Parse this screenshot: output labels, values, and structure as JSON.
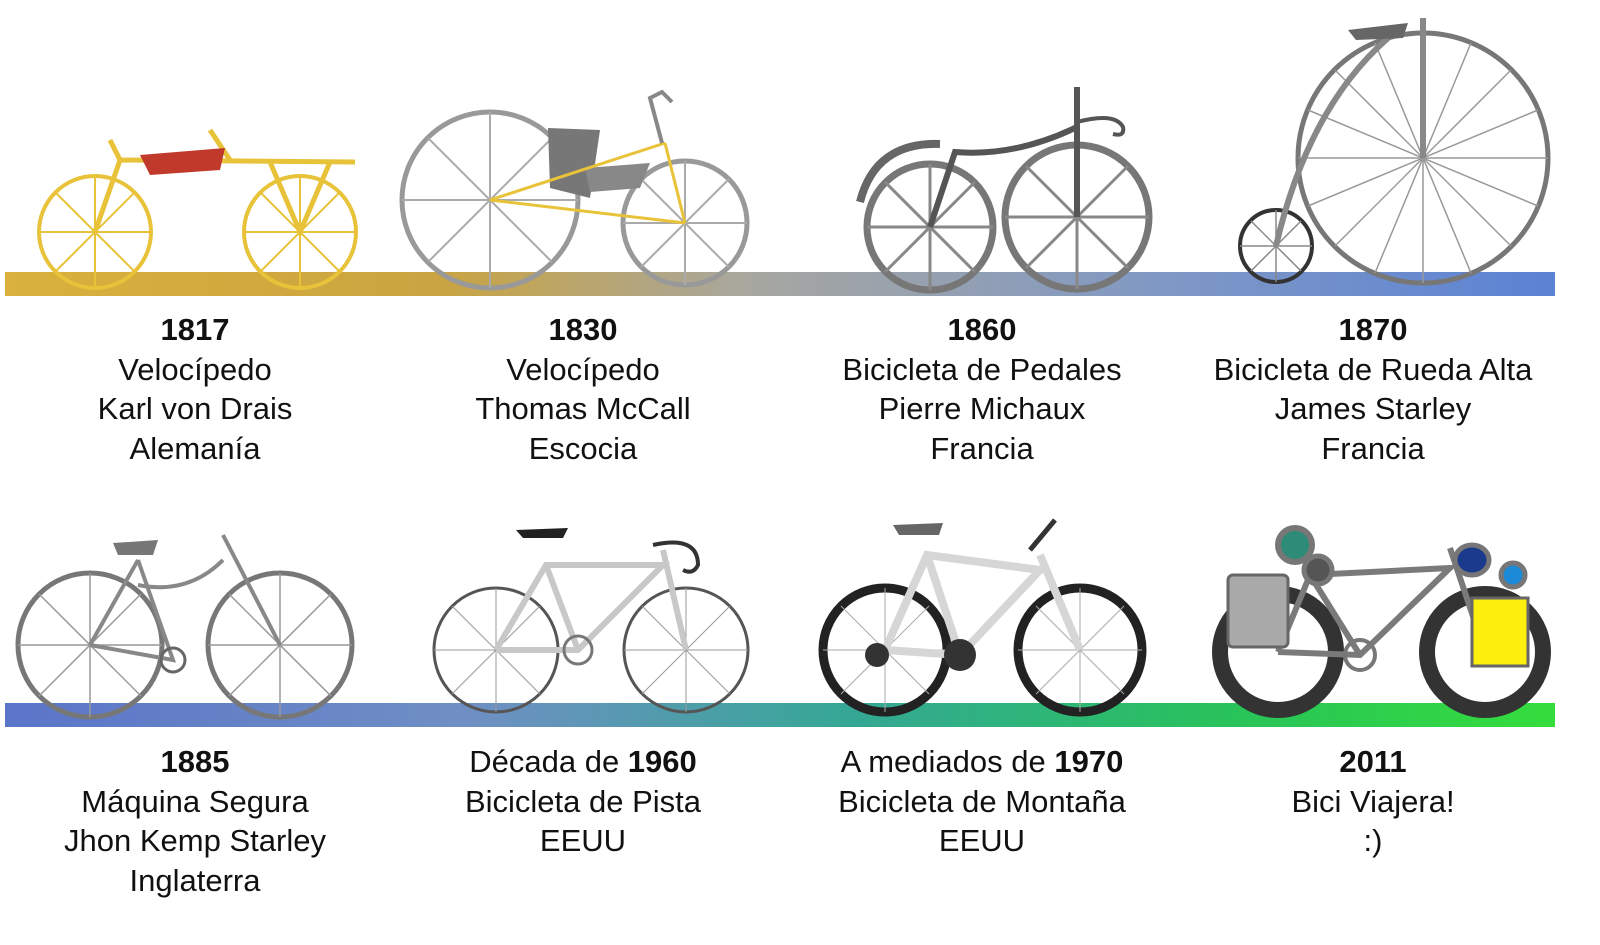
{
  "colors": {
    "band_top_left": "#d9b13c",
    "band_top_right": "#5b82d4",
    "band_bottom_left": "#5b75c9",
    "band_bottom_right": "#35dd3c",
    "draisine_frame": "#e8c33a",
    "draisine_seat": "#c0392b",
    "touring_bag_left": "#a9a9a9",
    "touring_bag_right": "#ffef0f"
  },
  "entries": [
    {
      "icon": "draisine-bicycle-icon",
      "year": "1817",
      "name": "Velocípedo",
      "inventor": "Karl von Drais",
      "country": "Alemanía"
    },
    {
      "icon": "mccall-velocipede-icon",
      "year": "1830",
      "name": "Velocípedo",
      "inventor": "Thomas McCall",
      "country": "Escocia"
    },
    {
      "icon": "pedal-bicycle-icon",
      "year": "1860",
      "name": "Bicicleta de Pedales",
      "inventor": "Pierre Michaux",
      "country": "Francia"
    },
    {
      "icon": "penny-farthing-icon",
      "year": "1870",
      "name": "Bicicleta de Rueda Alta",
      "inventor": "James Starley",
      "country": "Francia"
    },
    {
      "icon": "safety-bicycle-icon",
      "year": "1885",
      "name": "Máquina Segura",
      "inventor": "Jhon Kemp Starley",
      "country": "Inglaterra"
    },
    {
      "icon": "track-bicycle-icon",
      "year_prefix": "Década de ",
      "year": "1960",
      "name": "Bicicleta de Pista",
      "country": "EEUU"
    },
    {
      "icon": "mountain-bicycle-icon",
      "year_prefix": "A mediados de ",
      "year": "1970",
      "name": "Bicicleta de Montaña",
      "country": "EEUU"
    },
    {
      "icon": "touring-bicycle-icon",
      "year": "2011",
      "name": "Bici Viajera!",
      "note": ":)"
    }
  ]
}
